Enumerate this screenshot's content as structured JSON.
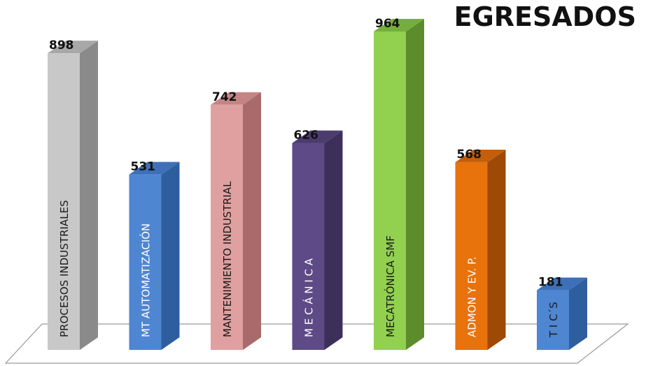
{
  "chart_data": {
    "type": "bar",
    "title": "EGRESADOS",
    "xlabel": "",
    "ylabel": "",
    "ylim": [
      0,
      964
    ],
    "grid": false,
    "legend": "none",
    "three_d": true,
    "categories": [
      "PROCESOS INDUSTRIALES",
      "MT  AUTOMATIZACIÓN",
      "MANTENIMIENTO INDUSTRIAL",
      "M E C Á N I C A",
      "MECATRÓNICA SMF",
      "ADMON Y EV. P.",
      "T I C´S"
    ],
    "values": [
      898,
      531,
      742,
      626,
      964,
      568,
      181
    ],
    "colors": [
      {
        "front": "#c8c8c8",
        "side": "#8a8a8a",
        "top": "#a8a8a8",
        "text": "#1a1a1a"
      },
      {
        "front": "#4f86d2",
        "side": "#2e5e9e",
        "top": "#3d70b8",
        "text": "#ffffff"
      },
      {
        "front": "#e0a0a0",
        "side": "#a86a6a",
        "top": "#c48484",
        "text": "#1a1a1a"
      },
      {
        "front": "#5e4a86",
        "side": "#3c2f5a",
        "top": "#4c3c6e",
        "text": "#ffffff"
      },
      {
        "front": "#92d050",
        "side": "#5c8c2c",
        "top": "#76ae3c",
        "text": "#1a1a1a"
      },
      {
        "front": "#e8720c",
        "side": "#9e4a06",
        "top": "#c45e08",
        "text": "#ffffff"
      },
      {
        "front": "#4f86d2",
        "side": "#2e5e9e",
        "top": "#3d70b8",
        "text": "#1a1a1a"
      }
    ]
  }
}
